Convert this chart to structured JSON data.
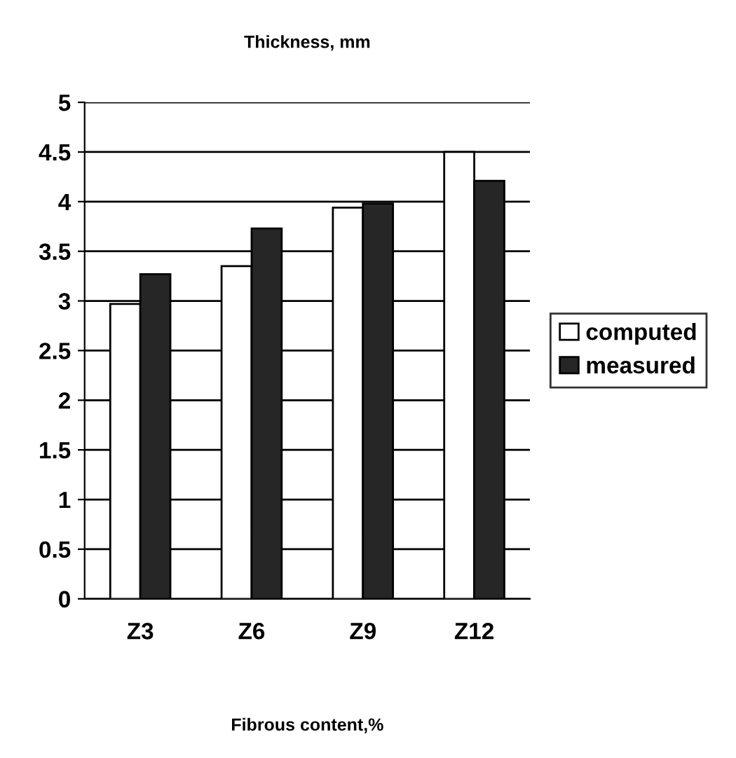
{
  "chart_data": {
    "type": "bar",
    "title": "Thickness, mm",
    "xlabel": "Fibrous content,%",
    "categories": [
      "Z3",
      "Z6",
      "Z9",
      "Z12"
    ],
    "series": [
      {
        "name": "computed",
        "color": "#ffffff",
        "values": [
          2.97,
          3.35,
          3.94,
          4.5
        ]
      },
      {
        "name": "measured",
        "color": "#262626",
        "values": [
          3.27,
          3.73,
          3.98,
          4.21
        ]
      }
    ],
    "ylim": [
      0,
      5
    ],
    "yticks": [
      0,
      0.5,
      1,
      1.5,
      2,
      2.5,
      3,
      3.5,
      4,
      4.5,
      5
    ],
    "grid": "y",
    "legend": "right"
  }
}
